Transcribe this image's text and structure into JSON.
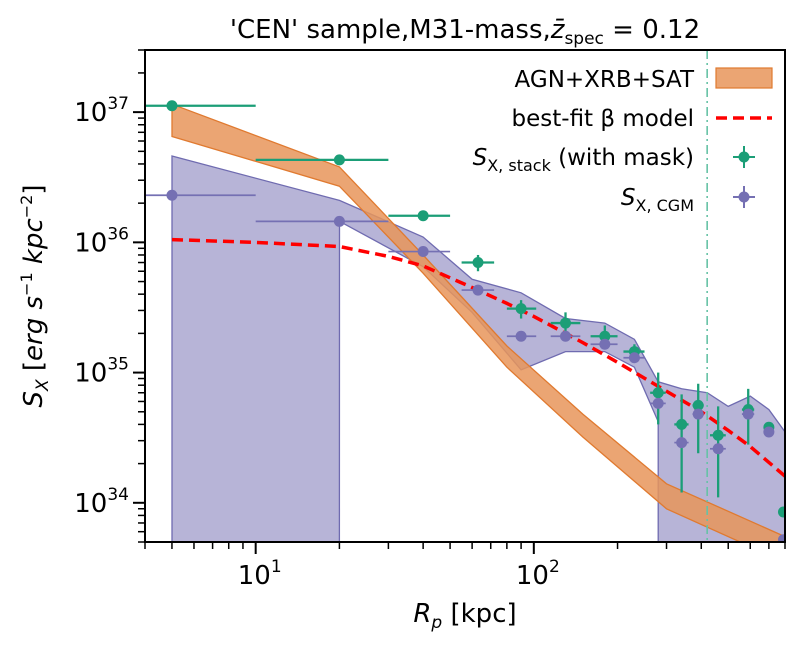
{
  "chart_data": {
    "type": "scatter",
    "title": "'CEN' sample,M31-mass,z̄spec = 0.12",
    "title_parts": {
      "prefix": "'CEN' sample,M31-mass,",
      "symbol": "z̄",
      "subscript": "spec",
      "suffix": " = 0.12"
    },
    "xlabel": {
      "symbol": "R",
      "subscript": "p",
      "unit": " [kpc]"
    },
    "ylabel": "S_X [erg s^-1 kpc^-2]",
    "xscale": "log",
    "yscale": "log",
    "xlim": [
      4,
      800
    ],
    "ylim": [
      5e+33,
      3e+37
    ],
    "x_tick_labels": [
      {
        "value": 10,
        "base": "10",
        "exp": "1"
      },
      {
        "value": 100,
        "base": "10",
        "exp": "2"
      }
    ],
    "y_tick_labels": [
      {
        "value": 1e+34,
        "base": "10",
        "exp": "34"
      },
      {
        "value": 1e+35,
        "base": "10",
        "exp": "35"
      },
      {
        "value": 1e+36,
        "base": "10",
        "exp": "36"
      },
      {
        "value": 1e+37,
        "base": "10",
        "exp": "37"
      }
    ],
    "vline": {
      "x": 420,
      "color": "#66c2a5",
      "style": "dashdot"
    },
    "legend": {
      "position": "top-right",
      "entries": [
        {
          "label": "AGN+XRB+SAT",
          "kind": "band",
          "color": "#e8955a"
        },
        {
          "label": "best-fit β model",
          "kind": "dashed-line",
          "color": "#ff0000"
        },
        {
          "label": "S_X,stack (with mask)",
          "base": "S",
          "subscript": "X, stack",
          "suffix": " (with mask)",
          "kind": "errorbar",
          "color": "#1b9e77"
        },
        {
          "label": "S_X,CGM",
          "base": "S",
          "subscript": "X, CGM",
          "suffix": "",
          "kind": "errorbar",
          "color": "#7570b3"
        }
      ]
    },
    "series": [
      {
        "name": "AGN+XRB+SAT",
        "kind": "band",
        "color": "#e8955a",
        "x": [
          5,
          20,
          40,
          80,
          150,
          300,
          800
        ],
        "lower": [
          6.5e+36,
          2.7e+36,
          5.8e+35,
          1.1e+35,
          3.2e+34,
          9e+33,
          3.5e+33
        ],
        "upper": [
          1.15e+37,
          3.8e+36,
          8e+35,
          1.6e+35,
          4.8e+34,
          1.4e+34,
          5.5e+33
        ]
      },
      {
        "name": "best-fit β model",
        "kind": "dashed-line",
        "color": "#ff0000",
        "x": [
          5,
          10,
          20,
          30,
          40,
          60,
          80,
          100,
          150,
          200,
          300,
          400,
          500,
          600,
          800
        ],
        "y": [
          1.05e+36,
          1e+36,
          9.3e+35,
          7.8e+35,
          6.6e+35,
          4.5e+35,
          3.4e+35,
          2.7e+35,
          1.7e+35,
          1.2e+35,
          7.2e+34,
          5e+34,
          3.6e+34,
          2.7e+34,
          1.6e+34
        ]
      },
      {
        "name": "S_X,CGM band",
        "kind": "band",
        "color": "#7570b3",
        "x": [
          5,
          20,
          20.01,
          40,
          60,
          90,
          130,
          180,
          230,
          280,
          280.1,
          340,
          420,
          500,
          600,
          700,
          800
        ],
        "lower": [
          5e+33,
          5e+33,
          1.45e+36,
          6.5e+35,
          2.9e+35,
          1.05e+35,
          1.45e+35,
          1.45e+35,
          1.1e+35,
          4.2e+34,
          5e+33,
          5e+33,
          5e+33,
          5e+33,
          5e+33,
          5e+33,
          5e+33
        ],
        "upper": [
          4.6e+36,
          2.1e+36,
          2.1e+36,
          1.1e+36,
          5.2e+35,
          4.1e+35,
          2.6e+35,
          2.4e+35,
          1.8e+35,
          8.5e+34,
          8.5e+34,
          7.5e+34,
          7e+34,
          5.5e+34,
          6.6e+34,
          5.2e+34,
          3.5e+34
        ]
      },
      {
        "name": "S_X,stack (with mask)",
        "kind": "errorbar",
        "color": "#1b9e77",
        "points": [
          {
            "x": 5,
            "y": 1.12e+37,
            "xlo": 4,
            "xhi": 10,
            "ylo": 1.12e+37,
            "yhi": 1.12e+37
          },
          {
            "x": 20,
            "y": 4.3e+36,
            "xlo": 10,
            "xhi": 30,
            "ylo": 4.3e+36,
            "yhi": 4.3e+36
          },
          {
            "x": 40,
            "y": 1.6e+36,
            "xlo": 30,
            "xhi": 50,
            "ylo": 1.6e+36,
            "yhi": 1.6e+36
          },
          {
            "x": 63,
            "y": 7e+35,
            "xlo": 55,
            "xhi": 72,
            "ylo": 6e+35,
            "yhi": 8e+35
          },
          {
            "x": 90,
            "y": 3.1e+35,
            "xlo": 80,
            "xhi": 102,
            "ylo": 2.6e+35,
            "yhi": 3.6e+35
          },
          {
            "x": 130,
            "y": 2.4e+35,
            "xlo": 115,
            "xhi": 147,
            "ylo": 2e+35,
            "yhi": 2.9e+35
          },
          {
            "x": 180,
            "y": 1.9e+35,
            "xlo": 160,
            "xhi": 200,
            "ylo": 1.6e+35,
            "yhi": 2.3e+35
          },
          {
            "x": 230,
            "y": 1.45e+35,
            "xlo": 210,
            "xhi": 250,
            "ylo": 1.2e+35,
            "yhi": 1.65e+35
          },
          {
            "x": 280,
            "y": 7e+34,
            "xlo": 262,
            "xhi": 298,
            "ylo": 4e+34,
            "yhi": 1e+35
          },
          {
            "x": 340,
            "y": 4e+34,
            "xlo": 320,
            "xhi": 360,
            "ylo": 1.2e+34,
            "yhi": 6.8e+34
          },
          {
            "x": 390,
            "y": 5.6e+34,
            "xlo": 372,
            "xhi": 408,
            "ylo": 2.4e+34,
            "yhi": 8.2e+34
          },
          {
            "x": 460,
            "y": 3.3e+34,
            "xlo": 430,
            "xhi": 490,
            "ylo": 1.1e+34,
            "yhi": 5.5e+34
          },
          {
            "x": 590,
            "y": 5.2e+34,
            "xlo": 560,
            "xhi": 620,
            "ylo": 2.8e+34,
            "yhi": 7.5e+34
          },
          {
            "x": 700,
            "y": 3.8e+34,
            "xlo": 670,
            "xhi": 730,
            "ylo": 3.8e+34,
            "yhi": 3.8e+34
          },
          {
            "x": 790,
            "y": 8.5e+33,
            "xlo": 775,
            "xhi": 800,
            "ylo": 8.5e+33,
            "yhi": 8.5e+33
          }
        ]
      },
      {
        "name": "S_X,CGM",
        "kind": "errorbar",
        "color": "#7570b3",
        "points": [
          {
            "x": 5,
            "y": 2.3e+36,
            "xlo": 4,
            "xhi": 10,
            "ylo": 2.3e+36,
            "yhi": 2.3e+36
          },
          {
            "x": 20,
            "y": 1.45e+36,
            "xlo": 10,
            "xhi": 30,
            "ylo": 1.45e+36,
            "yhi": 1.45e+36
          },
          {
            "x": 40,
            "y": 8.5e+35,
            "xlo": 30,
            "xhi": 50,
            "ylo": 8.5e+35,
            "yhi": 8.5e+35
          },
          {
            "x": 63,
            "y": 4.3e+35,
            "xlo": 55,
            "xhi": 72,
            "ylo": 4.3e+35,
            "yhi": 4.3e+35
          },
          {
            "x": 90,
            "y": 1.9e+35,
            "xlo": 80,
            "xhi": 102,
            "ylo": 1.9e+35,
            "yhi": 1.9e+35
          },
          {
            "x": 130,
            "y": 1.9e+35,
            "xlo": 115,
            "xhi": 147,
            "ylo": 1.9e+35,
            "yhi": 1.9e+35
          },
          {
            "x": 180,
            "y": 1.65e+35,
            "xlo": 160,
            "xhi": 200,
            "ylo": 1.65e+35,
            "yhi": 1.65e+35
          },
          {
            "x": 230,
            "y": 1.3e+35,
            "xlo": 210,
            "xhi": 250,
            "ylo": 1.3e+35,
            "yhi": 1.3e+35
          },
          {
            "x": 280,
            "y": 5.8e+34,
            "xlo": 262,
            "xhi": 298,
            "ylo": 5.8e+34,
            "yhi": 5.8e+34
          },
          {
            "x": 340,
            "y": 2.9e+34,
            "xlo": 320,
            "xhi": 360,
            "ylo": 2.9e+34,
            "yhi": 2.9e+34
          },
          {
            "x": 390,
            "y": 4.8e+34,
            "xlo": 372,
            "xhi": 408,
            "ylo": 4.8e+34,
            "yhi": 4.8e+34
          },
          {
            "x": 460,
            "y": 2.6e+34,
            "xlo": 430,
            "xhi": 490,
            "ylo": 2.6e+34,
            "yhi": 2.6e+34
          },
          {
            "x": 590,
            "y": 4.8e+34,
            "xlo": 560,
            "xhi": 620,
            "ylo": 4.8e+34,
            "yhi": 4.8e+34
          },
          {
            "x": 700,
            "y": 3.5e+34,
            "xlo": 670,
            "xhi": 730,
            "ylo": 3.5e+34,
            "yhi": 3.5e+34
          },
          {
            "x": 790,
            "y": 5.2e+33,
            "xlo": 775,
            "xhi": 800,
            "ylo": 5.2e+33,
            "yhi": 5.2e+33
          }
        ]
      }
    ]
  }
}
